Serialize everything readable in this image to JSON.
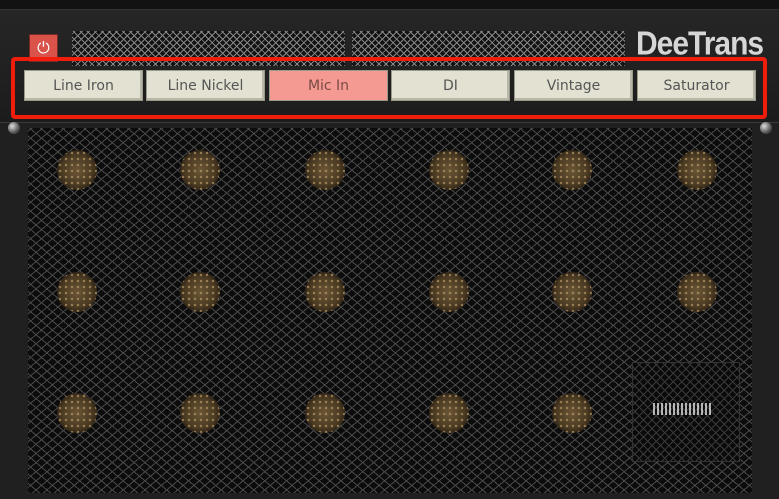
{
  "header": {
    "power_icon": "power-icon",
    "power_color": "#d9534a",
    "logo": "DeeTrans"
  },
  "modes": {
    "items": [
      {
        "label": "Line Iron",
        "active": false
      },
      {
        "label": "Line Nickel",
        "active": false
      },
      {
        "label": "Mic In",
        "active": true
      },
      {
        "label": "DI",
        "active": false
      },
      {
        "label": "Vintage",
        "active": false
      },
      {
        "label": "Saturator",
        "active": false
      }
    ],
    "active_color": "#f49a93",
    "highlight_color": "#f01c0c"
  }
}
